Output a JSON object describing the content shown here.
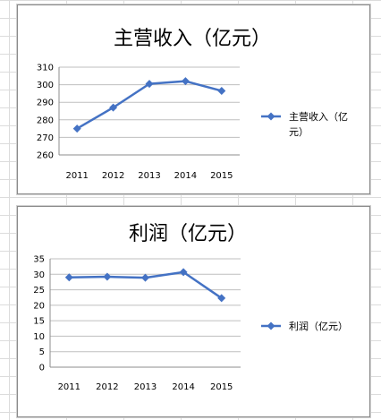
{
  "chart_data": [
    {
      "type": "line",
      "title": "主营收入（亿元）",
      "categories": [
        "2011",
        "2012",
        "2013",
        "2014",
        "2015"
      ],
      "series": [
        {
          "name": "主营收入（亿元）",
          "values": [
            275,
            287,
            300.5,
            302,
            296.5
          ]
        }
      ],
      "ylim": [
        260,
        310
      ],
      "yticks": [
        "260",
        "270",
        "280",
        "290",
        "300",
        "310"
      ],
      "grid": true,
      "legend": "right",
      "color": "#4472c4"
    },
    {
      "type": "line",
      "title": "利润（亿元）",
      "categories": [
        "2011",
        "2012",
        "2013",
        "2014",
        "2015"
      ],
      "series": [
        {
          "name": "利润（亿元）",
          "values": [
            29,
            29.2,
            28.9,
            30.7,
            22.3
          ]
        }
      ],
      "ylim": [
        0,
        35
      ],
      "yticks": [
        "0",
        "5",
        "10",
        "15",
        "20",
        "25",
        "30",
        "35"
      ],
      "grid": true,
      "legend": "right",
      "color": "#4472c4"
    }
  ]
}
